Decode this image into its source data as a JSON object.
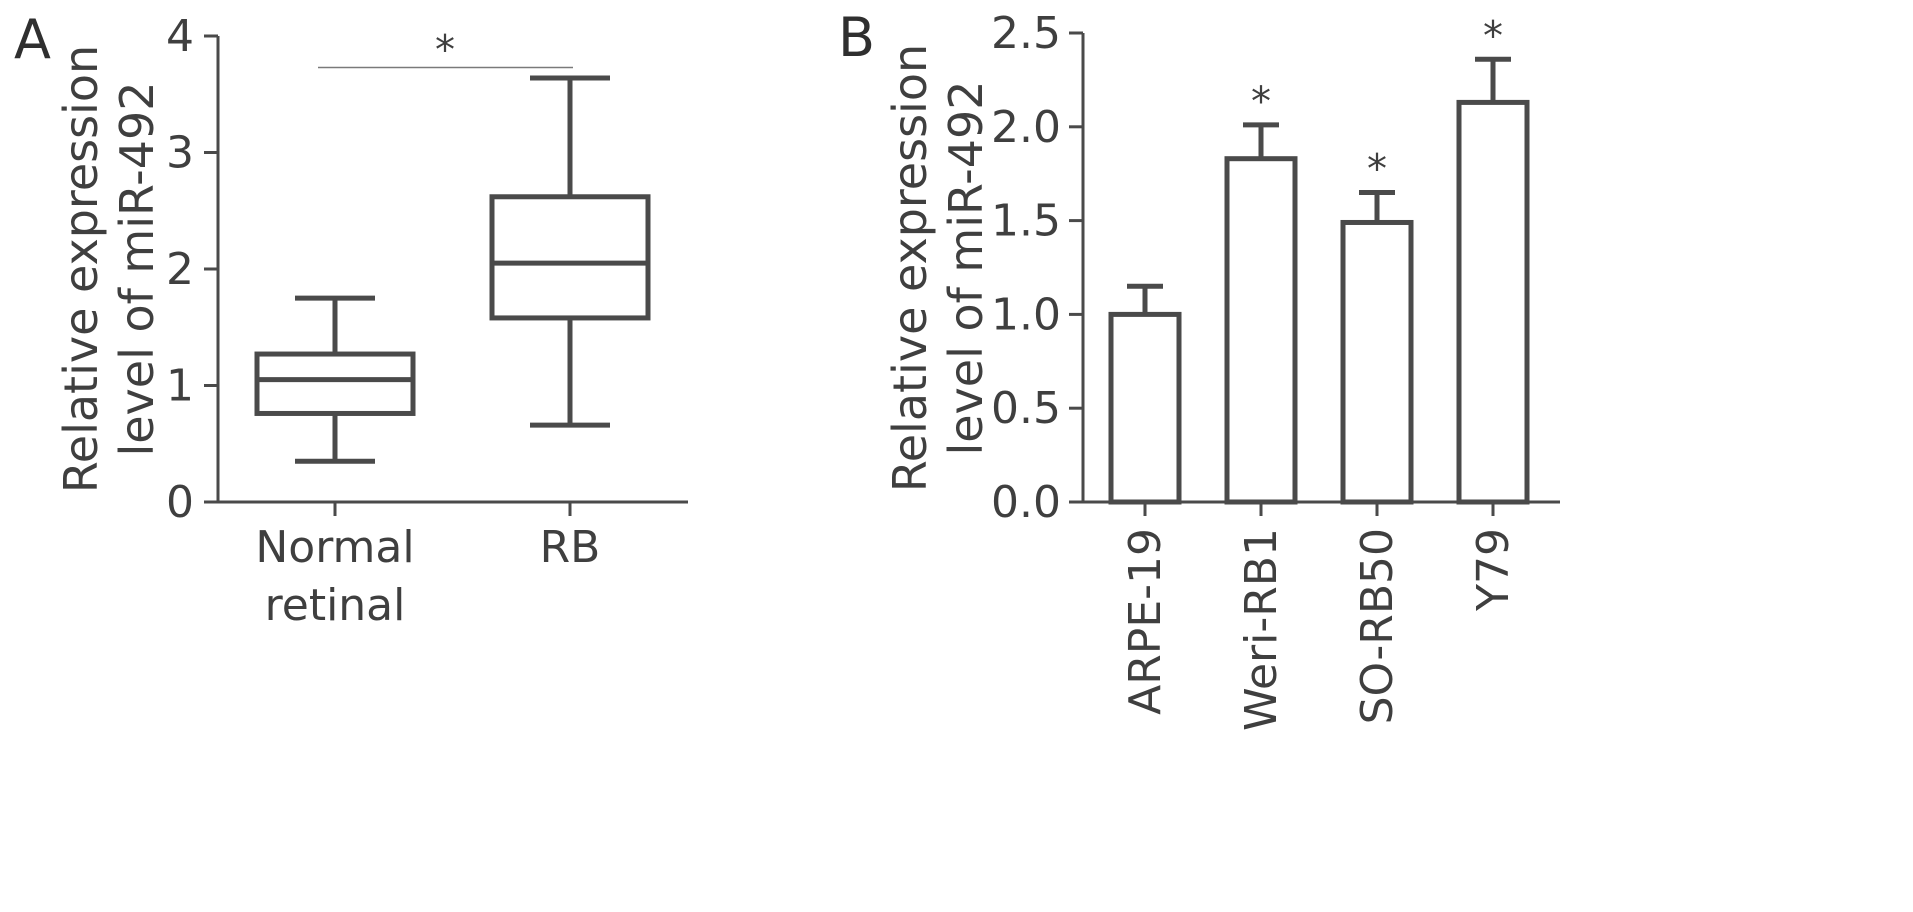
{
  "chart_data": [
    {
      "panel_label": "A",
      "type": "box",
      "categories": [
        "Normal\nretinal",
        "RB"
      ],
      "ylabel_lines": [
        "Relative expression",
        "level of miR-492"
      ],
      "ylim": [
        0,
        4
      ],
      "yticks": [
        0,
        1,
        2,
        3,
        4
      ],
      "boxes": [
        {
          "min": 0.35,
          "q1": 0.76,
          "median": 1.05,
          "q3": 1.27,
          "max": 1.75
        },
        {
          "min": 0.66,
          "q1": 1.58,
          "median": 2.05,
          "q3": 2.62,
          "max": 3.64
        }
      ],
      "significance": {
        "from": 0,
        "to": 1,
        "y": 3.73,
        "label": "*"
      },
      "grid": false
    },
    {
      "panel_label": "B",
      "type": "bar",
      "categories": [
        "ARPE-19",
        "Weri-RB1",
        "SO-RB50",
        "Y79"
      ],
      "values": [
        1.0,
        1.83,
        1.49,
        2.13
      ],
      "errors": [
        0.15,
        0.18,
        0.16,
        0.23
      ],
      "markers": [
        "",
        "*",
        "*",
        "*"
      ],
      "ylabel_lines": [
        "Relative expression",
        "level of miR-492"
      ],
      "ylim": [
        0,
        2.5
      ],
      "yticks": [
        "0.0",
        "0.5",
        "1.0",
        "1.5",
        "2.0",
        "2.5"
      ],
      "grid": false
    }
  ],
  "colors": {
    "stroke": "#4a4a4a",
    "text": "#3f3f3f",
    "sig_line": "#7a7a7a"
  }
}
